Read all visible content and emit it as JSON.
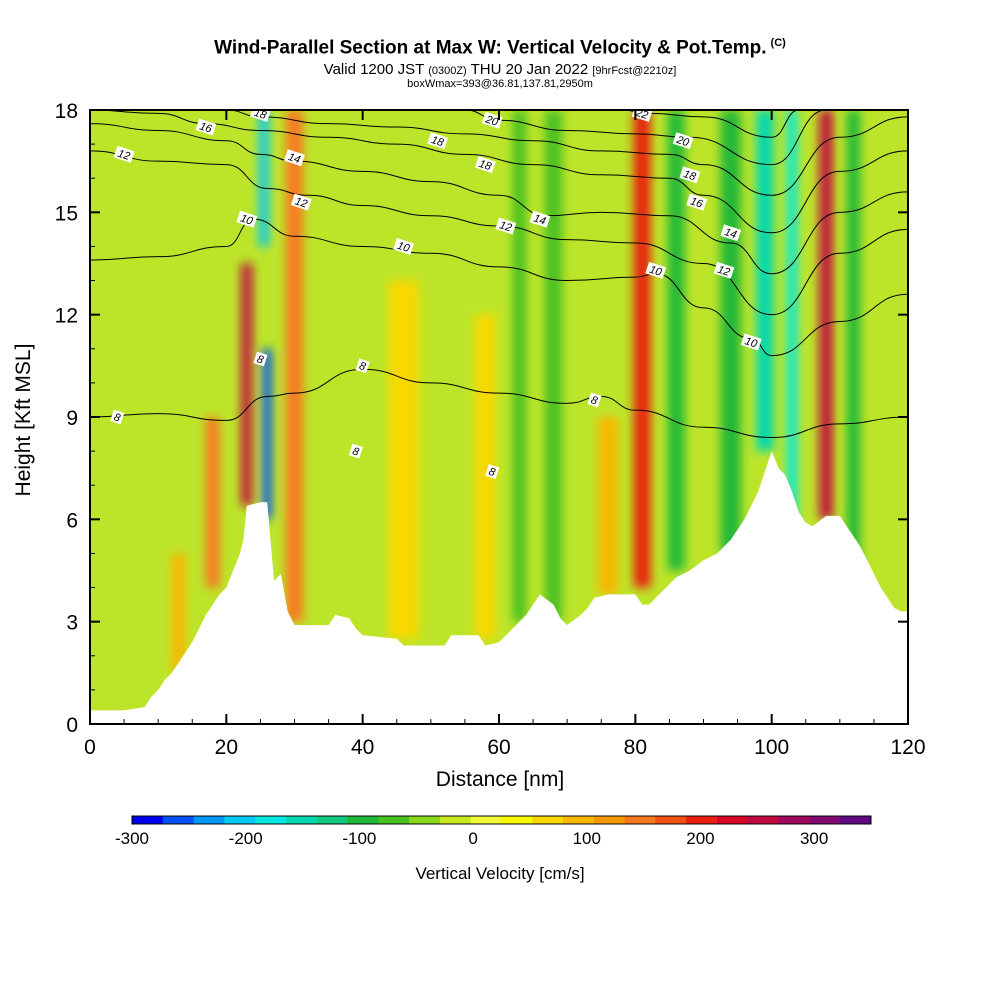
{
  "title": {
    "main": "Wind-Parallel Section at Max W: Vertical Velocity & Pot.Temp.",
    "corner": "(C)",
    "valid_prefix": "Valid 1200 JST",
    "valid_utc": "(0300Z)",
    "valid_date": "THU 20 Jan 2022",
    "valid_fcst": "[9hrFcst@2210z]",
    "box": "boxWmax=393@36.81,137.81,2950m"
  },
  "chart_data": {
    "type": "heatmap",
    "xlabel": "Distance [nm]",
    "ylabel": "Height [Kft MSL]",
    "xlim": [
      0,
      120
    ],
    "ylim": [
      0,
      18
    ],
    "x_ticks": [
      0,
      20,
      40,
      60,
      80,
      100,
      120
    ],
    "y_ticks": [
      0,
      3,
      6,
      9,
      12,
      15,
      18
    ],
    "colorbar": {
      "label": "Vertical Velocity [cm/s]",
      "min": -300,
      "max": 350,
      "ticks": [
        -300,
        -200,
        -100,
        0,
        100,
        200,
        300
      ],
      "colors": [
        "#0000f0",
        "#0050f5",
        "#0098f8",
        "#00c8f8",
        "#00e8e0",
        "#00d8b0",
        "#10c880",
        "#20b838",
        "#48c020",
        "#88d820",
        "#c8e820",
        "#f0f838",
        "#f8f800",
        "#f8d800",
        "#f8b800",
        "#f89800",
        "#f87820",
        "#f05010",
        "#e82010",
        "#d80828",
        "#c00840",
        "#a00860",
        "#800870",
        "#600880"
      ]
    },
    "terrain_kft": [
      [
        0,
        0.4
      ],
      [
        5,
        0.4
      ],
      [
        8,
        0.5
      ],
      [
        9,
        0.8
      ],
      [
        10,
        1.0
      ],
      [
        11,
        1.3
      ],
      [
        12,
        1.5
      ],
      [
        13,
        1.8
      ],
      [
        14,
        2.1
      ],
      [
        15,
        2.4
      ],
      [
        16,
        2.8
      ],
      [
        17,
        3.2
      ],
      [
        18,
        3.5
      ],
      [
        19,
        3.8
      ],
      [
        20,
        4.0
      ],
      [
        21,
        4.5
      ],
      [
        22,
        5.0
      ],
      [
        22.5,
        5.4
      ],
      [
        23,
        6.4
      ],
      [
        25,
        6.5
      ],
      [
        26,
        6.5
      ],
      [
        27,
        4.2
      ],
      [
        28,
        4.4
      ],
      [
        29,
        3.3
      ],
      [
        30,
        2.9
      ],
      [
        35,
        2.9
      ],
      [
        36,
        3.2
      ],
      [
        38,
        3.1
      ],
      [
        39,
        2.8
      ],
      [
        40,
        2.6
      ],
      [
        45,
        2.5
      ],
      [
        46,
        2.3
      ],
      [
        52,
        2.3
      ],
      [
        53,
        2.6
      ],
      [
        55,
        2.6
      ],
      [
        57,
        2.6
      ],
      [
        58,
        2.3
      ],
      [
        60,
        2.4
      ],
      [
        62,
        2.8
      ],
      [
        63,
        3.0
      ],
      [
        64,
        3.2
      ],
      [
        65,
        3.5
      ],
      [
        66,
        3.8
      ],
      [
        68,
        3.5
      ],
      [
        69,
        3.1
      ],
      [
        70,
        2.9
      ],
      [
        72,
        3.2
      ],
      [
        73,
        3.4
      ],
      [
        74,
        3.7
      ],
      [
        76,
        3.8
      ],
      [
        80,
        3.8
      ],
      [
        81,
        3.5
      ],
      [
        82,
        3.5
      ],
      [
        84,
        3.9
      ],
      [
        86,
        4.3
      ],
      [
        88,
        4.5
      ],
      [
        90,
        4.8
      ],
      [
        92,
        5.0
      ],
      [
        94,
        5.4
      ],
      [
        96,
        6.0
      ],
      [
        98,
        6.8
      ],
      [
        100,
        8.0
      ],
      [
        101,
        7.5
      ],
      [
        102,
        7.3
      ],
      [
        103,
        6.8
      ],
      [
        104,
        6.2
      ],
      [
        105,
        5.9
      ],
      [
        106,
        5.8
      ],
      [
        108,
        6.1
      ],
      [
        110,
        6.1
      ],
      [
        111,
        5.8
      ],
      [
        113,
        5.2
      ],
      [
        114,
        4.8
      ],
      [
        115,
        4.4
      ],
      [
        116,
        4.0
      ],
      [
        117,
        3.7
      ],
      [
        118,
        3.4
      ],
      [
        119,
        3.3
      ],
      [
        120,
        3.3
      ]
    ],
    "vertical_velocity_bands": [
      {
        "x": 23,
        "w": 1.6,
        "y0": 6.4,
        "y1": 13.5,
        "v": 260
      },
      {
        "x": 26,
        "w": 1.3,
        "y0": 6.0,
        "y1": 11.0,
        "v": -260
      },
      {
        "x": 25.5,
        "w": 1.4,
        "y0": 14.0,
        "y1": 18.0,
        "v": -200
      },
      {
        "x": 30,
        "w": 2.5,
        "y0": 3.0,
        "y1": 18.0,
        "v": 150
      },
      {
        "x": 18,
        "w": 2.0,
        "y0": 4.0,
        "y1": 9.0,
        "v": 140
      },
      {
        "x": 13,
        "w": 2.0,
        "y0": 1.5,
        "y1": 5.0,
        "v": 100
      },
      {
        "x": 46,
        "w": 4.5,
        "y0": 2.5,
        "y1": 13.0,
        "v": 70
      },
      {
        "x": 58,
        "w": 3.0,
        "y0": 2.5,
        "y1": 12.0,
        "v": 60
      },
      {
        "x": 63,
        "w": 2.0,
        "y0": 3.0,
        "y1": 18.0,
        "v": -70
      },
      {
        "x": 68,
        "w": 2.5,
        "y0": 3.0,
        "y1": 18.0,
        "v": -80
      },
      {
        "x": 76,
        "w": 3.0,
        "y0": 3.8,
        "y1": 9.0,
        "v": 80
      },
      {
        "x": 81,
        "w": 2.5,
        "y0": 4.0,
        "y1": 18.0,
        "v": 190
      },
      {
        "x": 86,
        "w": 2.5,
        "y0": 4.5,
        "y1": 18.0,
        "v": -90
      },
      {
        "x": 94,
        "w": 3.0,
        "y0": 5.0,
        "y1": 18.0,
        "v": -110
      },
      {
        "x": 99,
        "w": 2.5,
        "y0": 8.0,
        "y1": 18.0,
        "v": -160
      },
      {
        "x": 103,
        "w": 1.5,
        "y0": 5.5,
        "y1": 18.0,
        "v": -180
      },
      {
        "x": 108,
        "w": 2.0,
        "y0": 6.0,
        "y1": 18.0,
        "v": 260
      },
      {
        "x": 112,
        "w": 2.0,
        "y0": 4.0,
        "y1": 18.0,
        "v": -110
      }
    ],
    "theta_contours": [
      {
        "label": "8",
        "pts": [
          [
            0,
            9.0
          ],
          [
            10,
            9.1
          ],
          [
            20,
            8.9
          ],
          [
            26,
            9.6
          ],
          [
            30,
            9.7
          ],
          [
            40,
            10.4
          ],
          [
            50,
            10.0
          ],
          [
            60,
            9.7
          ],
          [
            70,
            9.4
          ],
          [
            75,
            9.6
          ],
          [
            80,
            9.2
          ],
          [
            90,
            8.7
          ],
          [
            100,
            8.4
          ],
          [
            110,
            8.8
          ],
          [
            120,
            9.0
          ]
        ]
      },
      {
        "label": "10",
        "pts": [
          [
            0,
            13.6
          ],
          [
            10,
            13.7
          ],
          [
            20,
            14.0
          ],
          [
            24,
            14.8
          ],
          [
            30,
            14.3
          ],
          [
            40,
            14.0
          ],
          [
            50,
            13.8
          ],
          [
            60,
            13.4
          ],
          [
            70,
            13.0
          ],
          [
            80,
            13.1
          ],
          [
            83,
            13.2
          ],
          [
            90,
            12.2
          ],
          [
            97,
            11.3
          ],
          [
            100,
            10.8
          ],
          [
            110,
            11.8
          ],
          [
            120,
            12.6
          ]
        ]
      },
      {
        "label": "12",
        "pts": [
          [
            0,
            16.8
          ],
          [
            10,
            16.5
          ],
          [
            20,
            16.4
          ],
          [
            26,
            15.7
          ],
          [
            32,
            15.5
          ],
          [
            40,
            15.2
          ],
          [
            50,
            14.9
          ],
          [
            60,
            14.6
          ],
          [
            70,
            14.2
          ],
          [
            80,
            14.1
          ],
          [
            90,
            13.5
          ],
          [
            100,
            12.0
          ],
          [
            110,
            13.8
          ],
          [
            120,
            14.5
          ]
        ]
      },
      {
        "label": "14",
        "pts": [
          [
            0,
            17.6
          ],
          [
            10,
            17.4
          ],
          [
            20,
            17.1
          ],
          [
            25,
            16.7
          ],
          [
            30,
            16.5
          ],
          [
            40,
            16.2
          ],
          [
            50,
            15.9
          ],
          [
            60,
            15.5
          ],
          [
            67,
            14.9
          ],
          [
            75,
            15.0
          ],
          [
            85,
            14.9
          ],
          [
            94,
            14.1
          ],
          [
            100,
            13.2
          ],
          [
            110,
            15.0
          ],
          [
            120,
            15.6
          ]
        ]
      },
      {
        "label": "16",
        "pts": [
          [
            0,
            18.0
          ],
          [
            10,
            17.9
          ],
          [
            17,
            17.6
          ],
          [
            25,
            17.4
          ],
          [
            35,
            17.2
          ],
          [
            45,
            17.0
          ],
          [
            55,
            16.7
          ],
          [
            65,
            16.4
          ],
          [
            75,
            16.1
          ],
          [
            85,
            16.0
          ],
          [
            90,
            15.5
          ],
          [
            100,
            14.4
          ],
          [
            110,
            16.2
          ],
          [
            120,
            16.8
          ]
        ]
      },
      {
        "label": "18",
        "pts": [
          [
            20,
            18.0
          ],
          [
            25,
            17.8
          ],
          [
            35,
            17.6
          ],
          [
            45,
            17.5
          ],
          [
            55,
            17.3
          ],
          [
            65,
            17.1
          ],
          [
            75,
            16.8
          ],
          [
            85,
            16.7
          ],
          [
            90,
            16.4
          ],
          [
            100,
            15.5
          ],
          [
            110,
            17.2
          ],
          [
            120,
            17.8
          ]
        ]
      },
      {
        "label": "20",
        "pts": [
          [
            55,
            18.0
          ],
          [
            60,
            17.7
          ],
          [
            70,
            17.4
          ],
          [
            80,
            17.3
          ],
          [
            88,
            17.2
          ],
          [
            100,
            16.4
          ],
          [
            108,
            18.0
          ]
        ]
      },
      {
        "label": "22",
        "pts": [
          [
            78,
            18.0
          ],
          [
            82,
            17.9
          ],
          [
            90,
            17.8
          ],
          [
            100,
            17.2
          ],
          [
            104,
            18.0
          ]
        ]
      }
    ],
    "contour_labels": [
      {
        "text": "8",
        "x": 4,
        "y": 9.0
      },
      {
        "text": "8",
        "x": 25,
        "y": 10.7
      },
      {
        "text": "8",
        "x": 40,
        "y": 10.5
      },
      {
        "text": "8",
        "x": 39,
        "y": 8.0
      },
      {
        "text": "8",
        "x": 59,
        "y": 7.4
      },
      {
        "text": "8",
        "x": 74,
        "y": 9.5
      },
      {
        "text": "10",
        "x": 23,
        "y": 14.8
      },
      {
        "text": "10",
        "x": 46,
        "y": 14.0
      },
      {
        "text": "10",
        "x": 83,
        "y": 13.3
      },
      {
        "text": "10",
        "x": 97,
        "y": 11.2
      },
      {
        "text": "12",
        "x": 5,
        "y": 16.7
      },
      {
        "text": "12",
        "x": 31,
        "y": 15.3
      },
      {
        "text": "12",
        "x": 61,
        "y": 14.6
      },
      {
        "text": "12",
        "x": 93,
        "y": 13.3
      },
      {
        "text": "14",
        "x": 30,
        "y": 16.6
      },
      {
        "text": "14",
        "x": 66,
        "y": 14.8
      },
      {
        "text": "14",
        "x": 94,
        "y": 14.4
      },
      {
        "text": "16",
        "x": 17,
        "y": 17.5
      },
      {
        "text": "16",
        "x": 89,
        "y": 15.3
      },
      {
        "text": "18",
        "x": 25,
        "y": 17.9
      },
      {
        "text": "18",
        "x": 51,
        "y": 17.1
      },
      {
        "text": "18",
        "x": 58,
        "y": 16.4
      },
      {
        "text": "18",
        "x": 88,
        "y": 16.1
      },
      {
        "text": "20",
        "x": 59,
        "y": 17.7
      },
      {
        "text": "20",
        "x": 87,
        "y": 17.1
      },
      {
        "text": "22",
        "x": 81,
        "y": 17.9
      }
    ]
  }
}
